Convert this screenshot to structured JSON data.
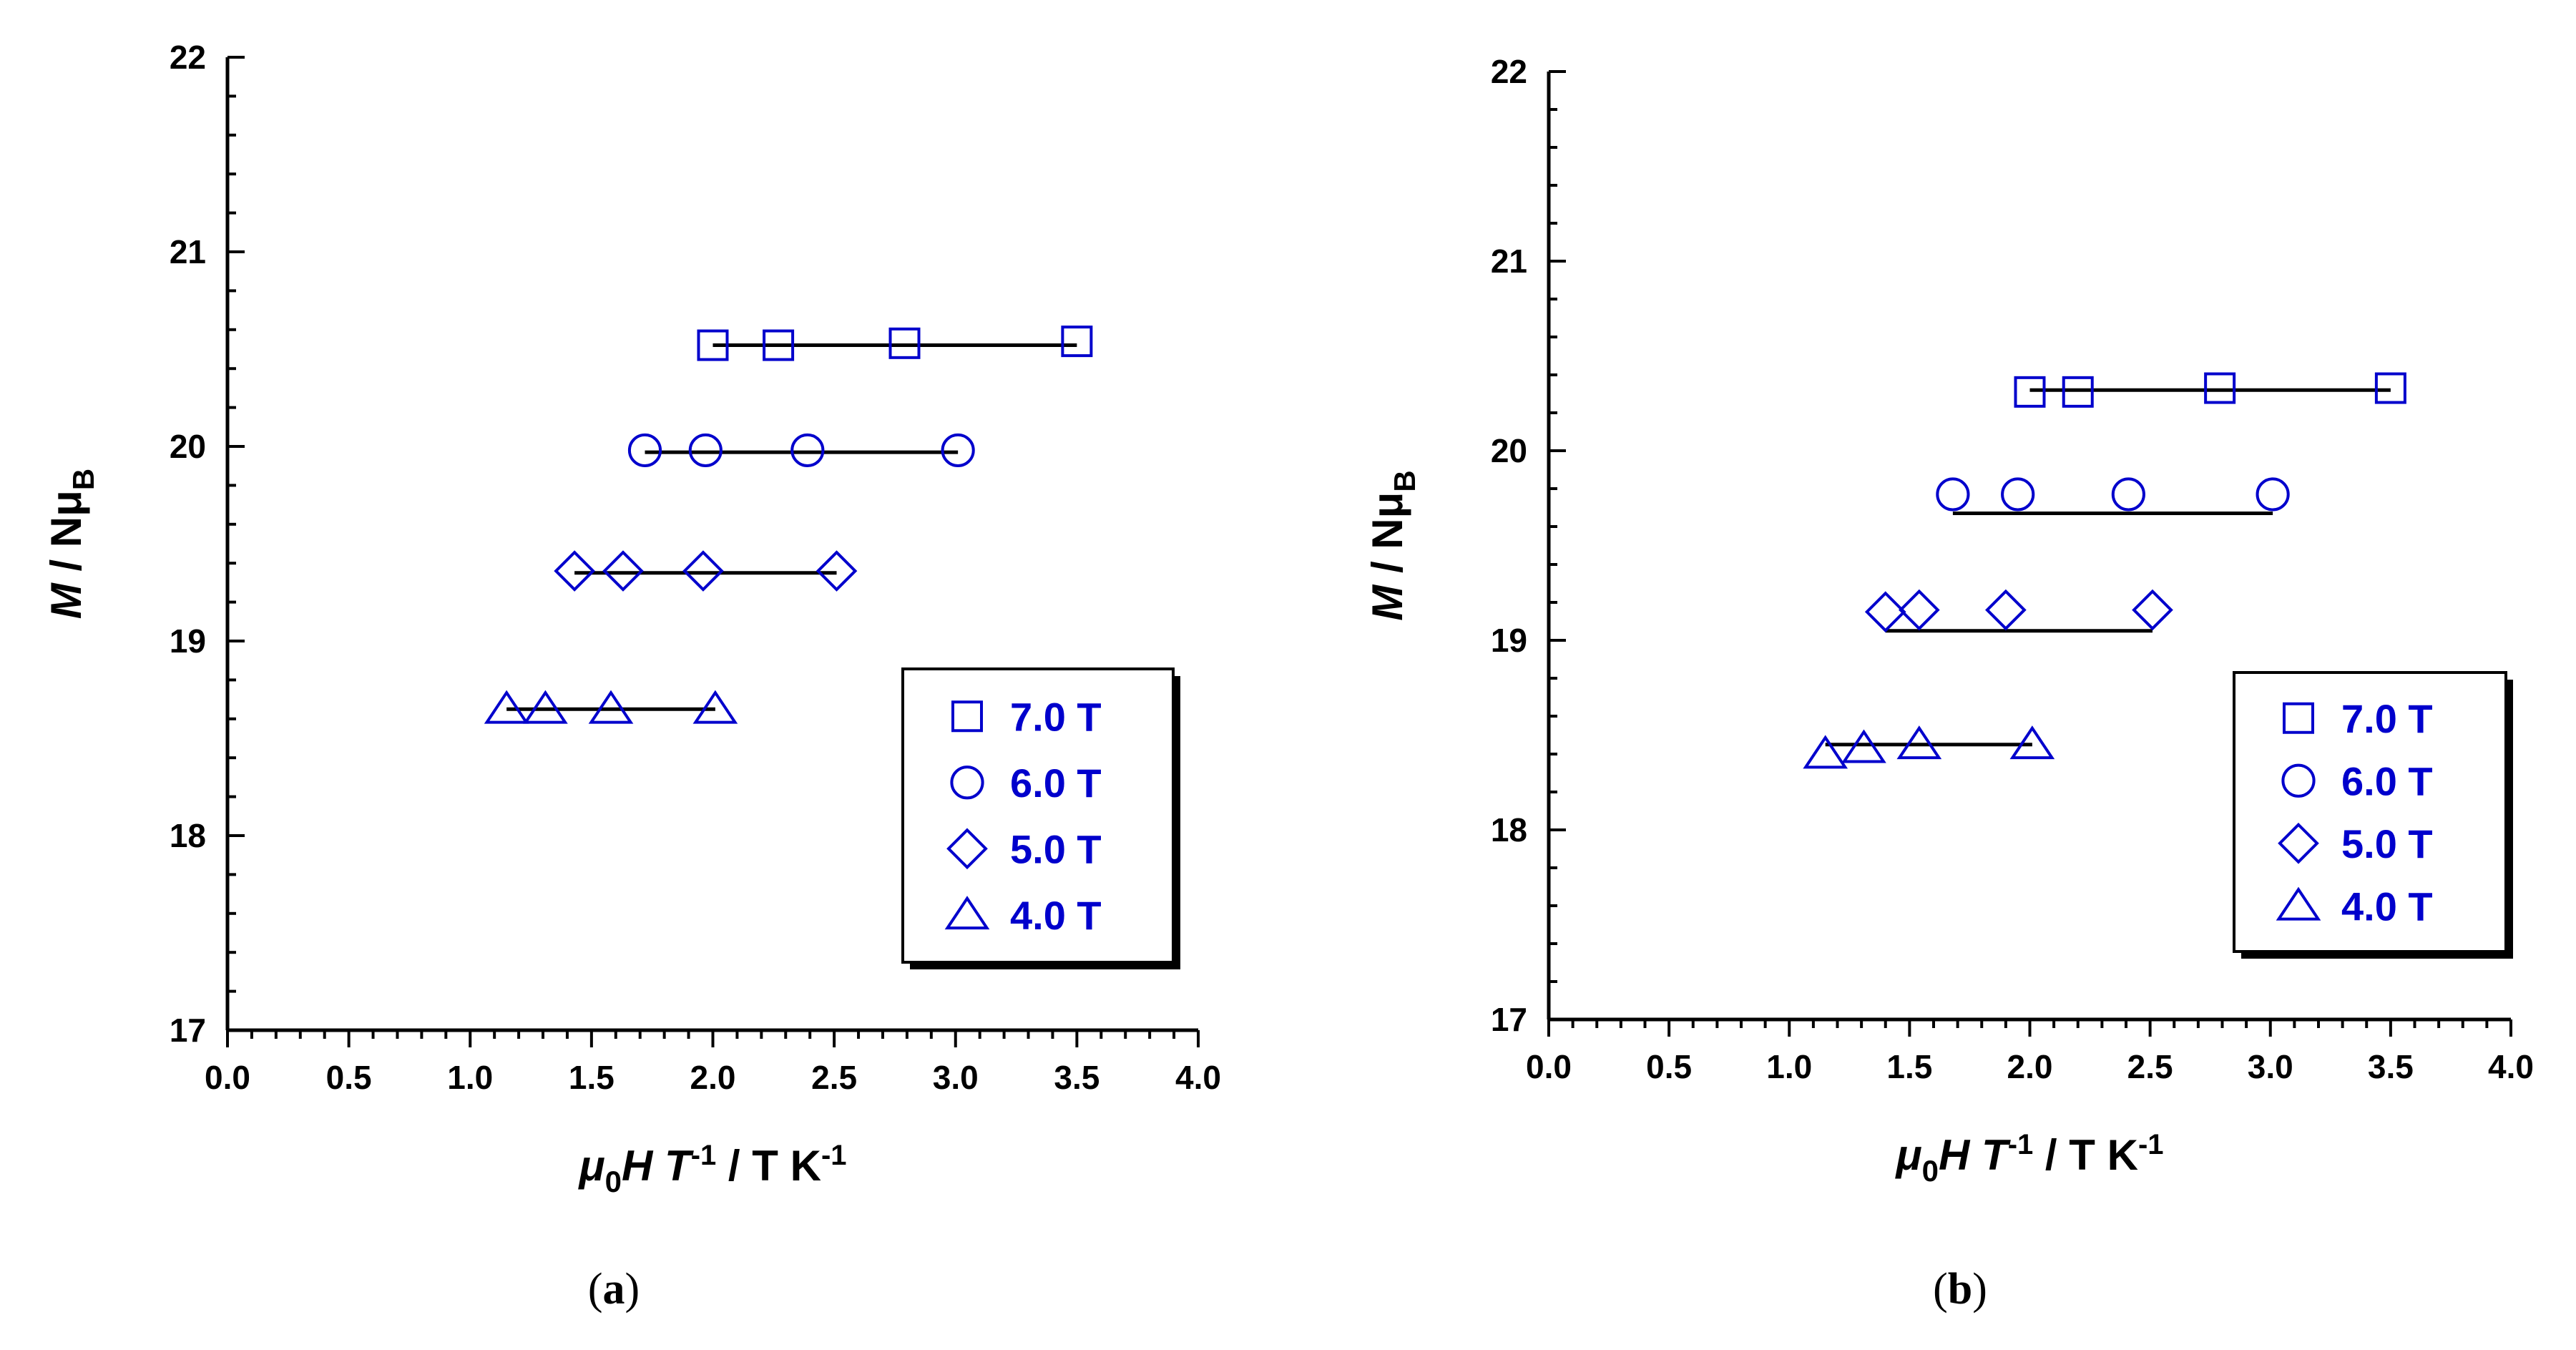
{
  "chart_data": [
    {
      "id": "a",
      "type": "scatter",
      "panel_label": "(a)",
      "xlabel": {
        "pre": "μ",
        "sub": "0",
        "mid": "H T",
        "sup": "-1",
        "post": " / T K",
        "sup2": "-1"
      },
      "ylabel": {
        "pre": "M",
        "mid": " / Nμ",
        "sub": "B"
      },
      "xlim": [
        0.0,
        4.0
      ],
      "ylim": [
        17,
        22
      ],
      "xticks": [
        "0.0",
        "0.5",
        "1.0",
        "1.5",
        "2.0",
        "2.5",
        "3.0",
        "3.5",
        "4.0"
      ],
      "yticks": [
        "17",
        "18",
        "19",
        "20",
        "21",
        "22"
      ],
      "series": [
        {
          "name": "7.0 T",
          "marker": "square",
          "x": [
            2.0,
            2.27,
            2.79,
            3.5
          ],
          "y": [
            20.52,
            20.52,
            20.53,
            20.54
          ],
          "fit": {
            "x": [
              2.0,
              3.5
            ],
            "y": [
              20.52,
              20.52
            ]
          }
        },
        {
          "name": "6.0 T",
          "marker": "circle",
          "x": [
            1.72,
            1.97,
            2.39,
            3.01
          ],
          "y": [
            19.98,
            19.98,
            19.98,
            19.98
          ],
          "fit": {
            "x": [
              1.72,
              3.01
            ],
            "y": [
              19.97,
              19.97
            ]
          }
        },
        {
          "name": "5.0 T",
          "marker": "diamond",
          "x": [
            1.43,
            1.63,
            1.96,
            2.51
          ],
          "y": [
            19.36,
            19.36,
            19.36,
            19.36
          ],
          "fit": {
            "x": [
              1.43,
              2.51
            ],
            "y": [
              19.35,
              19.35
            ]
          }
        },
        {
          "name": "4.0 T",
          "marker": "triangle",
          "x": [
            1.15,
            1.31,
            1.58,
            2.01
          ],
          "y": [
            18.65,
            18.65,
            18.65,
            18.65
          ],
          "fit": {
            "x": [
              1.15,
              2.01
            ],
            "y": [
              18.65,
              18.65
            ]
          }
        }
      ],
      "legend": {
        "position": "bottom-right",
        "entries": [
          "7.0 T",
          "6.0 T",
          "5.0 T",
          "4.0 T"
        ]
      }
    },
    {
      "id": "b",
      "type": "scatter",
      "panel_label": "(b)",
      "xlabel": {
        "pre": "μ",
        "sub": "0",
        "mid": "H T",
        "sup": "-1",
        "post": " / T K",
        "sup2": "-1"
      },
      "ylabel": {
        "pre": "M",
        "mid": " / Nμ",
        "sub": "B"
      },
      "xlim": [
        0.0,
        4.0
      ],
      "ylim": [
        17,
        22
      ],
      "xticks": [
        "0.0",
        "0.5",
        "1.0",
        "1.5",
        "2.0",
        "2.5",
        "3.0",
        "3.5",
        "4.0"
      ],
      "yticks": [
        "17",
        "18",
        "19",
        "20",
        "21",
        "22"
      ],
      "series": [
        {
          "name": "7.0 T",
          "marker": "square",
          "x": [
            2.0,
            2.2,
            2.79,
            3.5
          ],
          "y": [
            20.31,
            20.31,
            20.33,
            20.33
          ],
          "fit": {
            "x": [
              2.0,
              3.5
            ],
            "y": [
              20.32,
              20.32
            ]
          }
        },
        {
          "name": "6.0 T",
          "marker": "circle",
          "x": [
            1.68,
            1.95,
            2.41,
            3.01
          ],
          "y": [
            19.77,
            19.77,
            19.77,
            19.77
          ],
          "fit": {
            "x": [
              1.68,
              3.01
            ],
            "y": [
              19.67,
              19.67
            ]
          }
        },
        {
          "name": "5.0 T",
          "marker": "diamond",
          "x": [
            1.4,
            1.54,
            1.9,
            2.51
          ],
          "y": [
            19.15,
            19.16,
            19.16,
            19.16
          ],
          "fit": {
            "x": [
              1.4,
              2.51
            ],
            "y": [
              19.05,
              19.05
            ]
          }
        },
        {
          "name": "4.0 T",
          "marker": "triangle",
          "x": [
            1.15,
            1.31,
            1.54,
            2.01
          ],
          "y": [
            18.4,
            18.43,
            18.45,
            18.45
          ],
          "fit": {
            "x": [
              1.15,
              2.01
            ],
            "y": [
              18.45,
              18.45
            ]
          }
        }
      ],
      "legend": {
        "position": "bottom-right",
        "entries": [
          "7.0 T",
          "6.0 T",
          "5.0 T",
          "4.0 T"
        ]
      }
    }
  ]
}
